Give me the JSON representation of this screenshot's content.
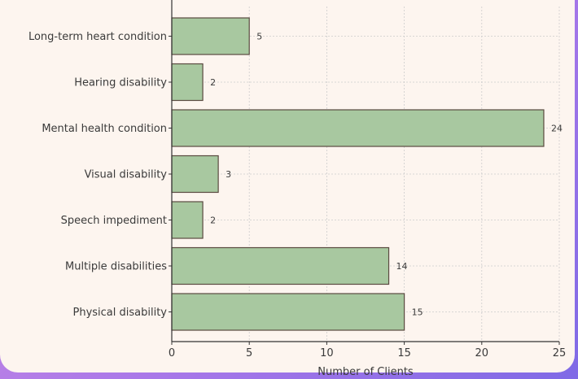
{
  "chart_data": {
    "type": "bar",
    "orientation": "horizontal",
    "categories": [
      "Long-term heart condition",
      "Hearing disability",
      "Mental health condition",
      "Visual disability",
      "Speech impediment",
      "Multiple disabilities",
      "Physical disability"
    ],
    "values": [
      5,
      2,
      24,
      3,
      2,
      14,
      15
    ],
    "xlabel": "Number of Clients",
    "ylabel": "",
    "title": "",
    "xlim": [
      0,
      25
    ],
    "xticks": [
      0,
      5,
      10,
      15,
      20,
      25
    ],
    "grid": true,
    "colors": {
      "bar_fill": "#a8c8a0",
      "bar_stroke": "#5a4a40",
      "grid": "#cccccc",
      "axis": "#333333"
    }
  }
}
